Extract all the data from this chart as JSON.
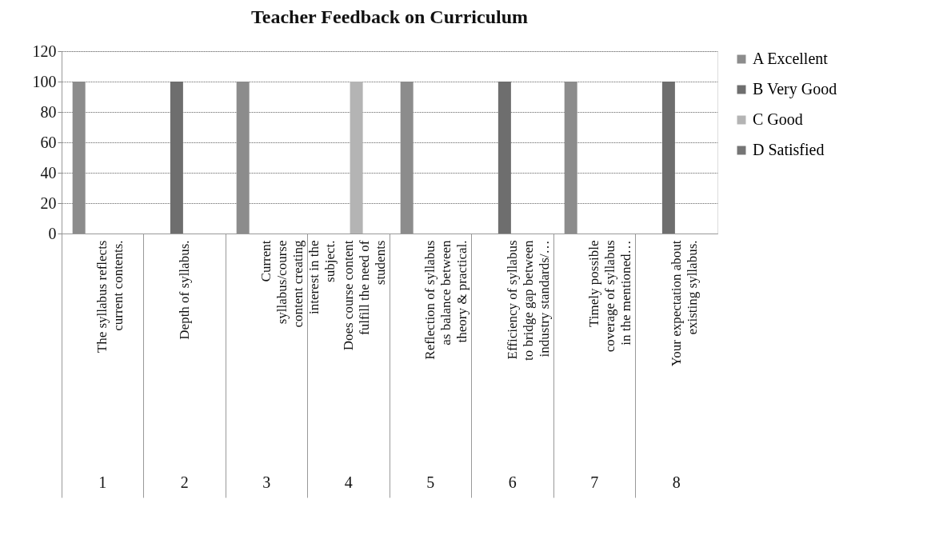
{
  "chart_data": {
    "type": "bar",
    "title": "Teacher Feedback on Curriculum",
    "categories": [
      "The syllabus reflects current contents.",
      "Depth of syllabus.",
      "Current syllabus/course content creating interest in the subject.",
      "Does course content fulfill the need of students",
      "Reflection of syllabus as balance between theory & practical.",
      "Efficiency of syllabus to bridge gap between industry standards/…",
      "Timely possible coverage of syllabus in the mentioned…",
      "Your expectation about existing syllabus."
    ],
    "series": [
      {
        "name": "A Excellent",
        "color": "#8c8c8c",
        "values": [
          100,
          0,
          100,
          0,
          100,
          0,
          100,
          0
        ]
      },
      {
        "name": "B Very Good",
        "color": "#6e6e6e",
        "values": [
          0,
          100,
          0,
          0,
          0,
          100,
          0,
          100
        ]
      },
      {
        "name": "C Good",
        "color": "#b4b4b4",
        "values": [
          0,
          0,
          0,
          100,
          0,
          0,
          0,
          0
        ]
      },
      {
        "name": "D Satisfied",
        "color": "#757575",
        "values": [
          0,
          0,
          0,
          0,
          0,
          0,
          0,
          0
        ]
      }
    ],
    "annotations": [
      "1",
      "2",
      "3",
      "4",
      "5",
      "6",
      "7",
      "8"
    ],
    "ylim": [
      0,
      120
    ],
    "yticks": [
      0,
      20,
      40,
      60,
      80,
      100,
      120
    ],
    "grid": "y",
    "legend": "right"
  }
}
